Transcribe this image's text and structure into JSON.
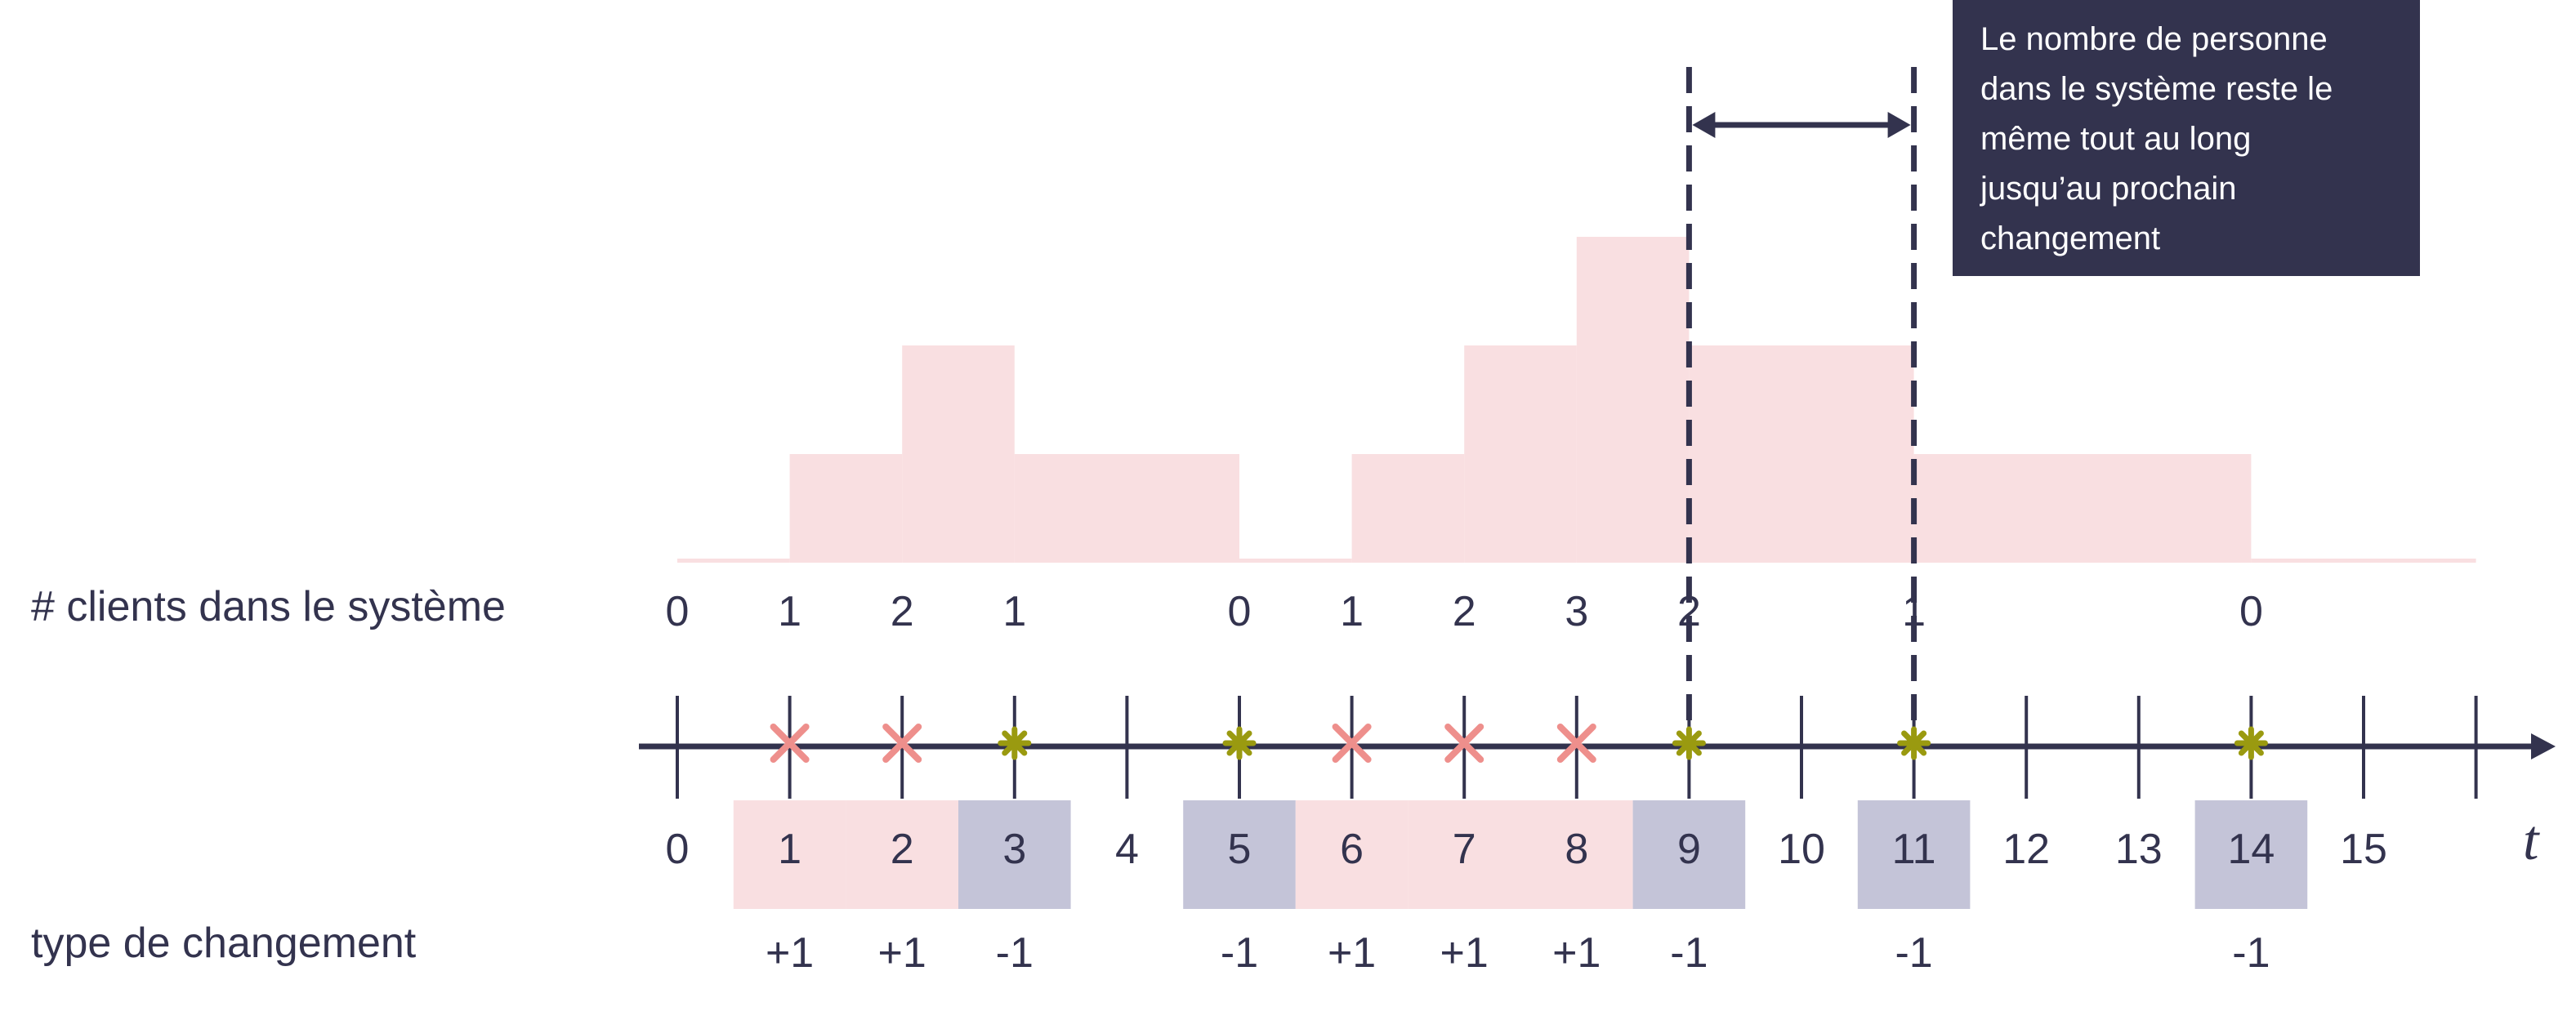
{
  "labels": {
    "count_row": "# clients dans le système",
    "change_row": "type de changement",
    "axis_var": "t"
  },
  "callout_lines": [
    "Le nombre de personne",
    "dans le système reste le",
    "même tout au long",
    "jusqu’au prochain",
    "changement"
  ],
  "time_ticks": [
    "0",
    "1",
    "2",
    "3",
    "4",
    "5",
    "6",
    "7",
    "8",
    "9",
    "10",
    "11",
    "12",
    "13",
    "14",
    "15"
  ],
  "events": [
    {
      "t": 1,
      "kind": "arrival",
      "count_after": "1",
      "change": "+1"
    },
    {
      "t": 2,
      "kind": "arrival",
      "count_after": "2",
      "change": "+1"
    },
    {
      "t": 3,
      "kind": "departure",
      "count_after": "1",
      "change": "-1"
    },
    {
      "t": 5,
      "kind": "departure",
      "count_after": "0",
      "change": "-1"
    },
    {
      "t": 6,
      "kind": "arrival",
      "count_after": "1",
      "change": "+1"
    },
    {
      "t": 7,
      "kind": "arrival",
      "count_after": "2",
      "change": "+1"
    },
    {
      "t": 8,
      "kind": "arrival",
      "count_after": "3",
      "change": "+1"
    },
    {
      "t": 9,
      "kind": "departure",
      "count_after": "2",
      "change": "-1"
    },
    {
      "t": 11,
      "kind": "departure",
      "count_after": "1",
      "change": "-1"
    },
    {
      "t": 14,
      "kind": "departure",
      "count_after": "0",
      "change": "-1"
    }
  ],
  "initial_count": "0",
  "steps": [
    {
      "from": 0,
      "to": 1,
      "level": 0
    },
    {
      "from": 1,
      "to": 2,
      "level": 1
    },
    {
      "from": 2,
      "to": 3,
      "level": 2
    },
    {
      "from": 3,
      "to": 5,
      "level": 1
    },
    {
      "from": 5,
      "to": 6,
      "level": 0
    },
    {
      "from": 6,
      "to": 7,
      "level": 1
    },
    {
      "from": 7,
      "to": 8,
      "level": 2
    },
    {
      "from": 8,
      "to": 9,
      "level": 3
    },
    {
      "from": 9,
      "to": 11,
      "level": 2
    },
    {
      "from": 11,
      "to": 14,
      "level": 1
    },
    {
      "from": 14,
      "to": 16,
      "level": 0
    }
  ],
  "highlight_interval": [
    9,
    11
  ],
  "colors": {
    "dark": "#33334e",
    "step_fill": "#f9dfe1",
    "arrival_band": "#f9dfe1",
    "departure_band": "#c4c4d8",
    "arrival_marker": "#ee8f8c",
    "departure_marker": "#9a9a10"
  }
}
